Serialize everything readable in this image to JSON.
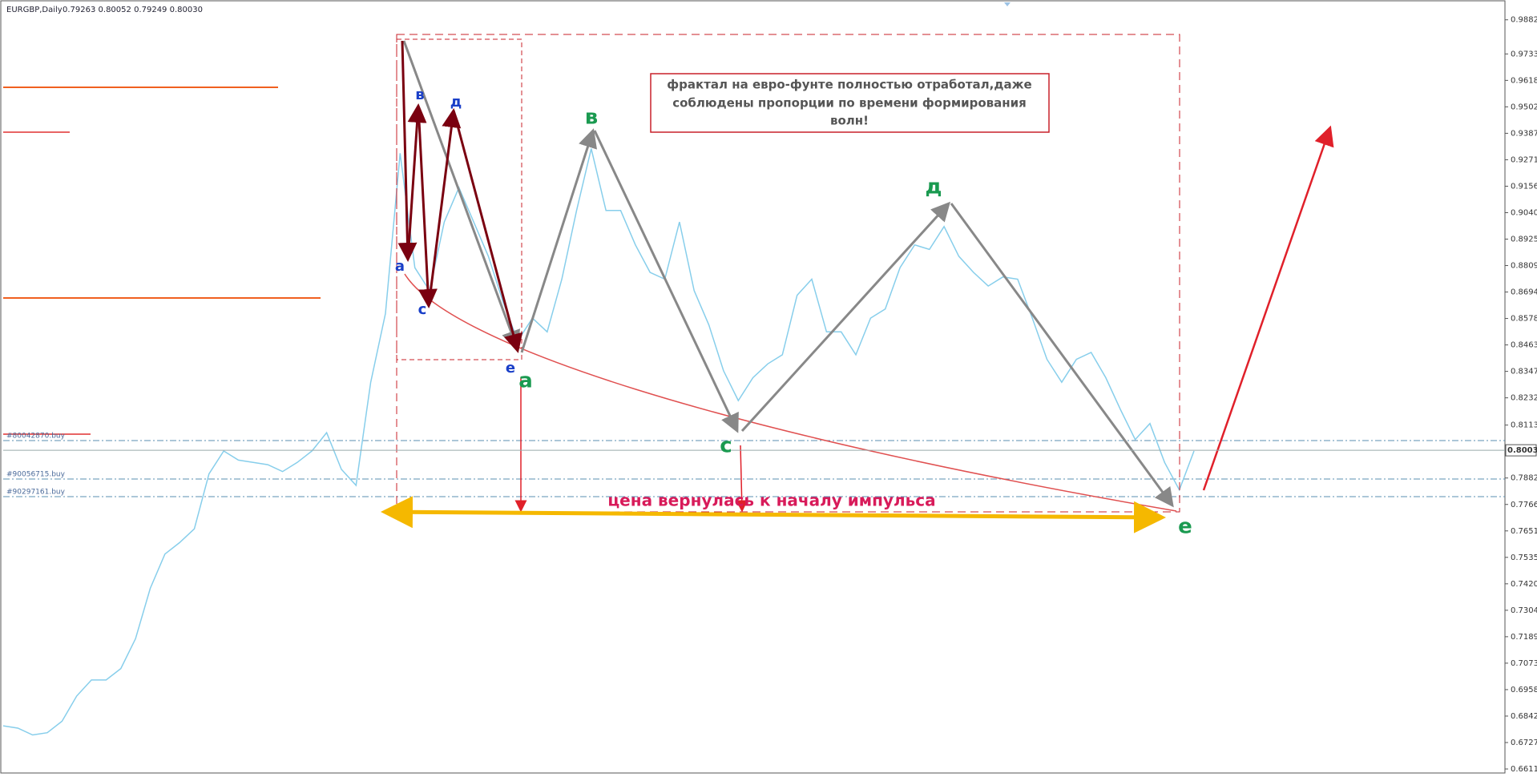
{
  "chart_data": {
    "type": "line",
    "title": "EURGBP,Daily",
    "subtitle": "0.79263 0.80052 0.79249 0.80030",
    "series": [
      {
        "name": "EURGBP",
        "color": "#87ceeb",
        "values": [
          0.68,
          0.679,
          0.676,
          0.677,
          0.682,
          0.693,
          0.7,
          0.7,
          0.705,
          0.718,
          0.74,
          0.755,
          0.76,
          0.766,
          0.79,
          0.8,
          0.796,
          0.795,
          0.794,
          0.791,
          0.795,
          0.8,
          0.808,
          0.792,
          0.785,
          0.83,
          0.86,
          0.93,
          0.88,
          0.87,
          0.9,
          0.915,
          0.9,
          0.885,
          0.865,
          0.848,
          0.858,
          0.852,
          0.875,
          0.905,
          0.932,
          0.905,
          0.905,
          0.89,
          0.878,
          0.875,
          0.9,
          0.87,
          0.855,
          0.835,
          0.822,
          0.832,
          0.838,
          0.842,
          0.868,
          0.875,
          0.852,
          0.852,
          0.842,
          0.858,
          0.862,
          0.88,
          0.89,
          0.888,
          0.898,
          0.885,
          0.878,
          0.872,
          0.876,
          0.875,
          0.858,
          0.84,
          0.83,
          0.84,
          0.843,
          0.832,
          0.818,
          0.805,
          0.812,
          0.795,
          0.783,
          0.8
        ]
      }
    ],
    "ylim": [
      0.6594,
      0.9948
    ],
    "yticks": [
      0.98825,
      0.97335,
      {
        "value": 0.9618,
        "label": "0.96180"
      },
      0.95025,
      {
        "value": 0.9387,
        "label": "0.93870"
      },
      0.92715,
      {
        "value": 0.9156,
        "label": "0.91560"
      },
      0.90405,
      {
        "value": 0.8925,
        "label": "0.89250"
      },
      0.88095,
      {
        "value": 0.8694,
        "label": "0.86940"
      },
      0.85785,
      {
        "value": 0.8463,
        "label": "0.84630"
      },
      0.83475,
      {
        "value": 0.8232,
        "label": "0.82320"
      },
      {
        "value": 0.8113,
        "label": "0.81130"
      },
      {
        "value": 0.7882,
        "label": "0.78820"
      },
      0.77665,
      {
        "value": 0.7651,
        "label": "0.76510"
      },
      0.75355,
      {
        "value": 0.742,
        "label": "0.74200"
      },
      0.73045,
      {
        "value": 0.7189,
        "label": "0.71890"
      },
      0.70735,
      {
        "value": 0.6958,
        "label": "0.69580"
      },
      0.68425,
      {
        "value": 0.6727,
        "label": "0.67270"
      },
      0.66115
    ],
    "current_price": {
      "value": 0.8003,
      "label": "0.80030"
    },
    "orders": [
      "#80042870.buy",
      "#90056715.buy",
      "#90297161.buy"
    ],
    "small_wave_labels": [
      "a",
      "в",
      "с",
      "д",
      "e"
    ],
    "big_wave_labels": [
      "а",
      "в",
      "с",
      "д",
      "е"
    ],
    "note": [
      "фрактал на евро-фунте полностью отработал,даже",
      "соблюдены пропорции по времени формирования",
      "волн!"
    ],
    "annotation": "цена вернулась к началу импульса"
  }
}
